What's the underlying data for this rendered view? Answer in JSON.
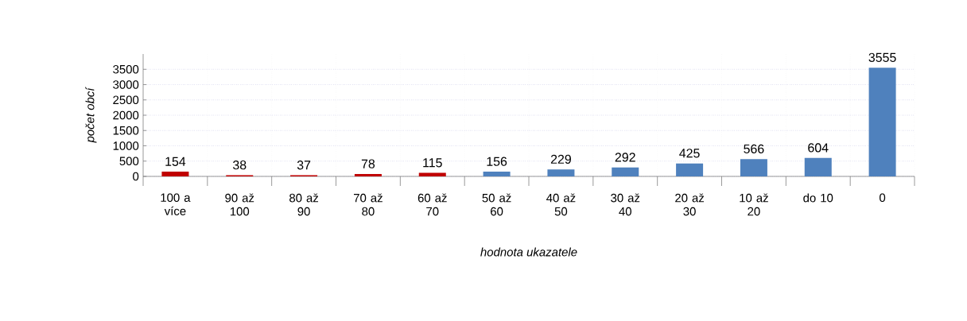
{
  "chart_data": {
    "type": "bar",
    "xlabel": "hodnota ukazatele",
    "ylabel": "počet obcí",
    "categories": [
      "100 a více",
      "90 až 100",
      "80 až 90",
      "70 až 80",
      "60 až 70",
      "50 až 60",
      "40 až 50",
      "30 až 40",
      "20 až 30",
      "10 až 20",
      "do 10",
      "0"
    ],
    "values": [
      154,
      38,
      37,
      78,
      115,
      156,
      229,
      292,
      425,
      566,
      604,
      3555
    ],
    "colors": [
      "#c00000",
      "#c00000",
      "#c00000",
      "#c00000",
      "#c00000",
      "#4f81bd",
      "#4f81bd",
      "#4f81bd",
      "#4f81bd",
      "#4f81bd",
      "#4f81bd",
      "#4f81bd"
    ],
    "ylim": [
      0,
      4000
    ],
    "yticks": [
      0,
      500,
      1000,
      1500,
      2000,
      2500,
      3000,
      3500
    ],
    "data_labels": true,
    "grid": true
  }
}
